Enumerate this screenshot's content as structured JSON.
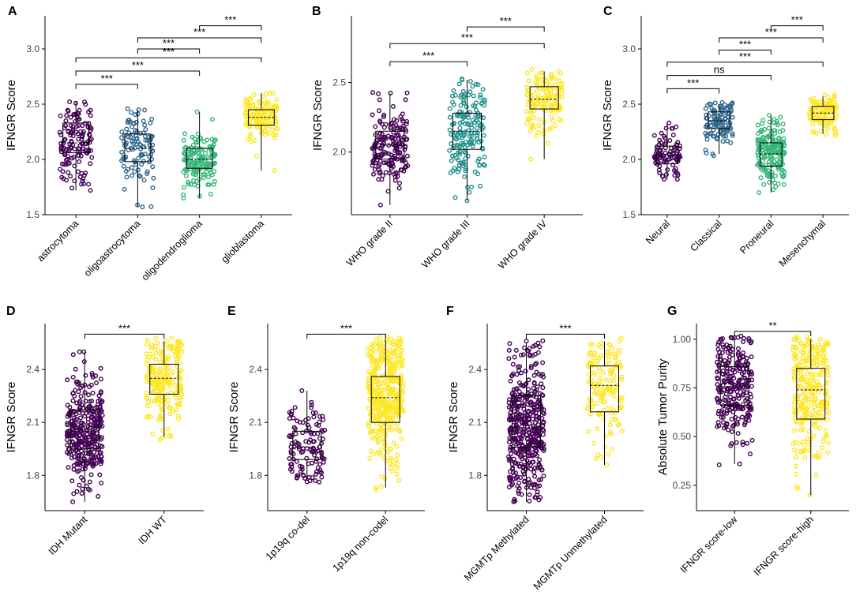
{
  "colors": {
    "purple": "#440154",
    "blue": "#31688e",
    "teal": "#21908c",
    "green": "#35b779",
    "yellow": "#fde725"
  },
  "chart_data": [
    {
      "letter": "A",
      "type": "boxplot-jitter",
      "ylabel": "IFNGR Score",
      "ylim": [
        1.5,
        3.3
      ],
      "yticks": [
        1.5,
        2.0,
        2.5,
        3.0
      ],
      "ytick_labels": [
        "1.5",
        "2.0",
        "2.5",
        "3.0"
      ],
      "categories": [
        "astrocytoma",
        "oligoastrocytoma",
        "oligodendroglioma",
        "glioblastoma"
      ],
      "colors": [
        "#440154",
        "#31688e",
        "#35b779",
        "#fde725"
      ],
      "boxes": [
        {
          "q1": 2.06,
          "median": 2.15,
          "q3": 2.33,
          "lo": 1.72,
          "hi": 2.52,
          "n": 140
        },
        {
          "q1": 1.98,
          "median": 2.1,
          "q3": 2.23,
          "lo": 1.57,
          "hi": 2.45,
          "n": 110
        },
        {
          "q1": 1.92,
          "median": 2.0,
          "q3": 2.1,
          "lo": 1.65,
          "hi": 2.43,
          "n": 150
        },
        {
          "q1": 2.31,
          "median": 2.38,
          "q3": 2.45,
          "lo": 1.9,
          "hi": 2.6,
          "n": 140
        }
      ],
      "comparisons": [
        {
          "from": 0,
          "to": 1,
          "y": 2.68,
          "label": "***"
        },
        {
          "from": 0,
          "to": 2,
          "y": 2.8,
          "label": "***"
        },
        {
          "from": 0,
          "to": 3,
          "y": 2.92,
          "label": "***"
        },
        {
          "from": 1,
          "to": 2,
          "y": 3.0,
          "label": "***"
        },
        {
          "from": 1,
          "to": 3,
          "y": 3.1,
          "label": "***"
        },
        {
          "from": 2,
          "to": 3,
          "y": 3.21,
          "label": "***"
        }
      ]
    },
    {
      "letter": "B",
      "type": "boxplot-jitter",
      "ylabel": "IFNGR Score",
      "ylim": [
        1.55,
        2.98
      ],
      "yticks": [
        2.0,
        2.5
      ],
      "ytick_labels": [
        "2.0",
        "2.5"
      ],
      "categories": [
        "WHO grade II",
        "WHO grade III",
        "WHO grade IV"
      ],
      "colors": [
        "#440154",
        "#21908c",
        "#fde725"
      ],
      "boxes": [
        {
          "q1": 1.95,
          "median": 2.05,
          "q3": 2.15,
          "lo": 1.62,
          "hi": 2.42,
          "n": 180
        },
        {
          "q1": 2.02,
          "median": 2.15,
          "q3": 2.28,
          "lo": 1.65,
          "hi": 2.52,
          "n": 170
        },
        {
          "q1": 2.31,
          "median": 2.38,
          "q3": 2.47,
          "lo": 1.95,
          "hi": 2.58,
          "n": 140
        }
      ],
      "comparisons": [
        {
          "from": 0,
          "to": 1,
          "y": 2.65,
          "label": "***"
        },
        {
          "from": 0,
          "to": 2,
          "y": 2.78,
          "label": "***"
        },
        {
          "from": 1,
          "to": 2,
          "y": 2.9,
          "label": "***"
        }
      ]
    },
    {
      "letter": "C",
      "type": "boxplot-jitter",
      "ylabel": "IFNGR Score",
      "ylim": [
        1.5,
        3.3
      ],
      "yticks": [
        1.5,
        2.0,
        2.5,
        3.0
      ],
      "ytick_labels": [
        "1.5",
        "2.0",
        "2.5",
        "3.0"
      ],
      "categories": [
        "Neural",
        "Classical",
        "Proneural",
        "Mesenchymal"
      ],
      "colors": [
        "#440154",
        "#31688e",
        "#35b779",
        "#fde725"
      ],
      "boxes": [
        {
          "q1": 1.96,
          "median": 2.04,
          "q3": 2.12,
          "lo": 1.82,
          "hi": 2.33,
          "n": 90
        },
        {
          "q1": 2.28,
          "median": 2.35,
          "q3": 2.43,
          "lo": 2.05,
          "hi": 2.5,
          "n": 110
        },
        {
          "q1": 1.94,
          "median": 2.05,
          "q3": 2.15,
          "lo": 1.7,
          "hi": 2.4,
          "n": 180
        },
        {
          "q1": 2.36,
          "median": 2.42,
          "q3": 2.48,
          "lo": 2.23,
          "hi": 2.57,
          "n": 110
        }
      ],
      "comparisons": [
        {
          "from": 0,
          "to": 1,
          "y": 2.64,
          "label": "***"
        },
        {
          "from": 0,
          "to": 2,
          "y": 2.76,
          "label": "ns"
        },
        {
          "from": 0,
          "to": 3,
          "y": 2.88,
          "label": "***"
        },
        {
          "from": 1,
          "to": 2,
          "y": 2.99,
          "label": "***"
        },
        {
          "from": 1,
          "to": 3,
          "y": 3.1,
          "label": "***"
        },
        {
          "from": 2,
          "to": 3,
          "y": 3.21,
          "label": "***"
        }
      ]
    },
    {
      "letter": "D",
      "type": "boxplot-jitter",
      "ylabel": "IFNGR Score",
      "ylim": [
        1.6,
        2.66
      ],
      "yticks": [
        1.8,
        2.1,
        2.4
      ],
      "ytick_labels": [
        "1.8",
        "2.1",
        "2.4"
      ],
      "categories": [
        "IDH Mutant",
        "IDH WT"
      ],
      "colors": [
        "#440154",
        "#fde725"
      ],
      "boxes": [
        {
          "q1": 1.95,
          "median": 2.05,
          "q3": 2.17,
          "lo": 1.65,
          "hi": 2.5,
          "n": 330
        },
        {
          "q1": 2.26,
          "median": 2.35,
          "q3": 2.43,
          "lo": 2.02,
          "hi": 2.56,
          "n": 220
        }
      ],
      "comparisons": [
        {
          "from": 0,
          "to": 1,
          "y": 2.6,
          "label": "***"
        }
      ]
    },
    {
      "letter": "E",
      "type": "boxplot-jitter",
      "ylabel": "IFNGR Score",
      "ylim": [
        1.6,
        2.66
      ],
      "yticks": [
        1.8,
        2.1,
        2.4
      ],
      "ytick_labels": [
        "1.8",
        "2.1",
        "2.4"
      ],
      "categories": [
        "1p19q co-del",
        "1p19q non-codel"
      ],
      "colors": [
        "#440154",
        "#fde725"
      ],
      "boxes": [
        {
          "q1": 1.89,
          "median": 1.96,
          "q3": 2.05,
          "lo": 1.77,
          "hi": 2.28,
          "n": 120
        },
        {
          "q1": 2.1,
          "median": 2.24,
          "q3": 2.36,
          "lo": 1.73,
          "hi": 2.57,
          "n": 420
        }
      ],
      "comparisons": [
        {
          "from": 0,
          "to": 1,
          "y": 2.6,
          "label": "***"
        }
      ]
    },
    {
      "letter": "F",
      "type": "boxplot-jitter",
      "ylabel": "IFNGR Score",
      "ylim": [
        1.6,
        2.66
      ],
      "yticks": [
        1.8,
        2.1,
        2.4
      ],
      "ytick_labels": [
        "1.8",
        "2.1",
        "2.4"
      ],
      "categories": [
        "MGMTp Methylated",
        "MGMTp Unmethylated"
      ],
      "colors": [
        "#440154",
        "#fde725"
      ],
      "boxes": [
        {
          "q1": 1.96,
          "median": 2.07,
          "q3": 2.25,
          "lo": 1.65,
          "hi": 2.55,
          "n": 430
        },
        {
          "q1": 2.16,
          "median": 2.31,
          "q3": 2.42,
          "lo": 1.86,
          "hi": 2.56,
          "n": 150
        }
      ],
      "comparisons": [
        {
          "from": 0,
          "to": 1,
          "y": 2.6,
          "label": "***"
        }
      ]
    },
    {
      "letter": "G",
      "type": "boxplot-jitter",
      "ylabel": "Absolute Tumor Purity",
      "ylim": [
        0.12,
        1.08
      ],
      "yticks": [
        0.25,
        0.5,
        0.75,
        1.0
      ],
      "ytick_labels": [
        "0.25",
        "0.50",
        "0.75",
        "1.00"
      ],
      "categories": [
        "IFNGR score-low",
        "IFNGR score-high"
      ],
      "colors": [
        "#440154",
        "#fde725"
      ],
      "boxes": [
        {
          "q1": 0.66,
          "median": 0.77,
          "q3": 0.86,
          "lo": 0.36,
          "hi": 1.0,
          "n": 260
        },
        {
          "q1": 0.59,
          "median": 0.74,
          "q3": 0.85,
          "lo": 0.2,
          "hi": 1.0,
          "n": 270
        }
      ],
      "comparisons": [
        {
          "from": 0,
          "to": 1,
          "y": 1.04,
          "label": "**"
        }
      ]
    }
  ]
}
